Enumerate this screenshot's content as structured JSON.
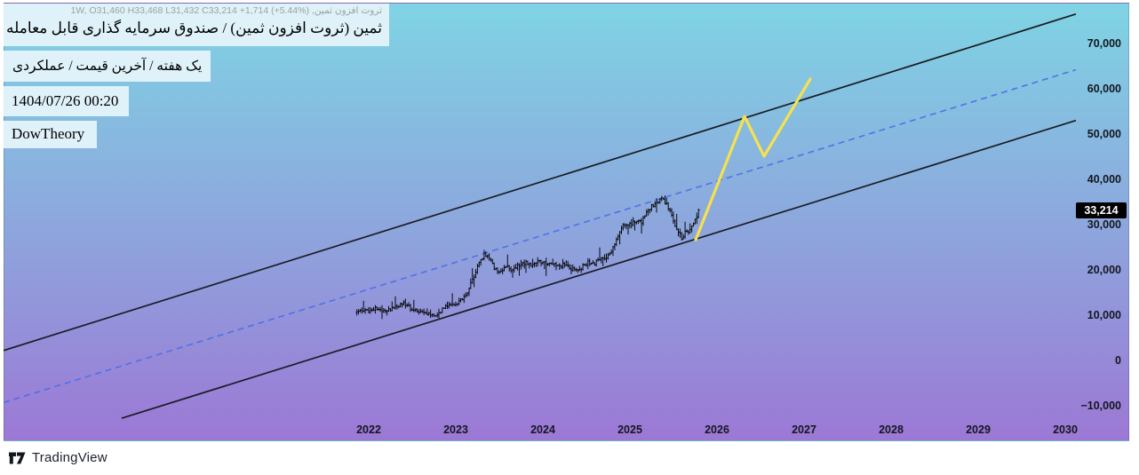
{
  "header": {
    "ohlc_line": "ثروت افزون ثمین, 1W, O31,460 H33,468 L31,432 C33,214 +1,714 (+5.44%)",
    "title": "ثمین (ثروت افزون ثمین) / صندوق سرمایه گذاری قابل معامله",
    "subtitle": "یک هفته / آخرین قیمت / عملکردی",
    "datetime": "1404/07/26 00:20",
    "signature": "DowTheory"
  },
  "footer": {
    "brand": "TradingView"
  },
  "price_scale": {
    "last_price_label": "33,214",
    "ticks": [
      {
        "value": 70000,
        "label": "70,000"
      },
      {
        "value": 60000,
        "label": "60,000"
      },
      {
        "value": 50000,
        "label": "50,000"
      },
      {
        "value": 40000,
        "label": "40,000"
      },
      {
        "value": 30000,
        "label": "30,000"
      },
      {
        "value": 20000,
        "label": "20,000"
      },
      {
        "value": 10000,
        "label": "10,000"
      },
      {
        "value": 0,
        "label": "0"
      },
      {
        "value": -10000,
        "label": "−10,000"
      }
    ]
  },
  "time_scale": {
    "ticks": [
      {
        "value": 2022,
        "label": "2022"
      },
      {
        "value": 2023,
        "label": "2023"
      },
      {
        "value": 2024,
        "label": "2024"
      },
      {
        "value": 2025,
        "label": "2025"
      },
      {
        "value": 2026,
        "label": "2026"
      },
      {
        "value": 2027,
        "label": "2027"
      },
      {
        "value": 2028,
        "label": "2028"
      },
      {
        "value": 2029,
        "label": "2029"
      },
      {
        "value": 2030,
        "label": "2030"
      }
    ]
  },
  "chart_data": {
    "type": "bar",
    "subtype": "ohlc-bars-weekly",
    "symbol": "ثمین (ثروت افزون ثمین)",
    "timeframe": "1W",
    "last_bar": {
      "open": 31460,
      "high": 33468,
      "low": 31432,
      "close": 33214,
      "change": 1714,
      "change_pct": 5.44
    },
    "x_domain_years": [
      2017.8,
      2030.73
    ],
    "y_domain_price": [
      -17800,
      79000
    ],
    "bars_per_year": 52,
    "price_anchors": [
      [
        2021.845,
        10600
      ],
      [
        2021.93,
        11200
      ],
      [
        2022.0,
        10800
      ],
      [
        2022.07,
        11550
      ],
      [
        2022.15,
        10600
      ],
      [
        2022.22,
        11000
      ],
      [
        2022.34,
        12150
      ],
      [
        2022.41,
        12700
      ],
      [
        2022.48,
        11550
      ],
      [
        2022.56,
        11000
      ],
      [
        2022.64,
        10400
      ],
      [
        2022.76,
        9600
      ],
      [
        2022.85,
        11400
      ],
      [
        2022.92,
        12150
      ],
      [
        2022.99,
        12550
      ],
      [
        2023.07,
        13550
      ],
      [
        2023.13,
        14900
      ],
      [
        2023.19,
        17650
      ],
      [
        2023.26,
        21200
      ],
      [
        2023.33,
        23700
      ],
      [
        2023.39,
        22150
      ],
      [
        2023.45,
        20200
      ],
      [
        2023.51,
        19400
      ],
      [
        2023.58,
        20800
      ],
      [
        2023.65,
        20000
      ],
      [
        2023.72,
        21200
      ],
      [
        2023.8,
        21550
      ],
      [
        2023.87,
        21000
      ],
      [
        2023.95,
        22150
      ],
      [
        2024.02,
        21400
      ],
      [
        2024.09,
        21550
      ],
      [
        2024.17,
        20600
      ],
      [
        2024.24,
        21400
      ],
      [
        2024.33,
        20200
      ],
      [
        2024.4,
        19600
      ],
      [
        2024.47,
        21000
      ],
      [
        2024.53,
        21750
      ],
      [
        2024.59,
        21200
      ],
      [
        2024.64,
        22550
      ],
      [
        2024.7,
        22150
      ],
      [
        2024.77,
        23900
      ],
      [
        2024.83,
        25500
      ],
      [
        2024.89,
        28800
      ],
      [
        2024.95,
        30400
      ],
      [
        2025.01,
        29800
      ],
      [
        2025.07,
        31000
      ],
      [
        2025.13,
        30400
      ],
      [
        2025.18,
        32150
      ],
      [
        2025.25,
        34100
      ],
      [
        2025.31,
        34900
      ],
      [
        2025.36,
        35700
      ],
      [
        2025.41,
        34700
      ],
      [
        2025.46,
        33300
      ],
      [
        2025.51,
        30200
      ],
      [
        2025.55,
        28600
      ],
      [
        2025.6,
        27050
      ],
      [
        2025.64,
        28450
      ],
      [
        2025.68,
        28050
      ],
      [
        2025.72,
        30000
      ],
      [
        2025.77,
        31400
      ],
      [
        2025.806,
        33214
      ]
    ],
    "channel": {
      "upper": [
        [
          2017.806,
          2200
        ],
        [
          2030.122,
          76500
        ]
      ],
      "middle_dashed": [
        [
          2017.806,
          -9300
        ],
        [
          2030.122,
          64200
        ]
      ],
      "lower": [
        [
          2019.163,
          -12750
        ],
        [
          2030.122,
          53000
        ]
      ]
    },
    "projection": [
      [
        2025.755,
        26650
      ],
      [
        2026.316,
        53900
      ],
      [
        2026.541,
        45100
      ],
      [
        2027.071,
        62150
      ]
    ],
    "colors": {
      "bg_top": "#7fd4e4",
      "bg_bottom": "#9c78d5",
      "bar": "#07080c",
      "channel_line": "#191c24",
      "middle_line": "#4c6fe8",
      "projection_line": "#f6e14e",
      "axis_text": "#13161f",
      "badge_bg": "#000000",
      "badge_text": "#ffffff"
    },
    "legend_position": "none",
    "grid": false
  }
}
